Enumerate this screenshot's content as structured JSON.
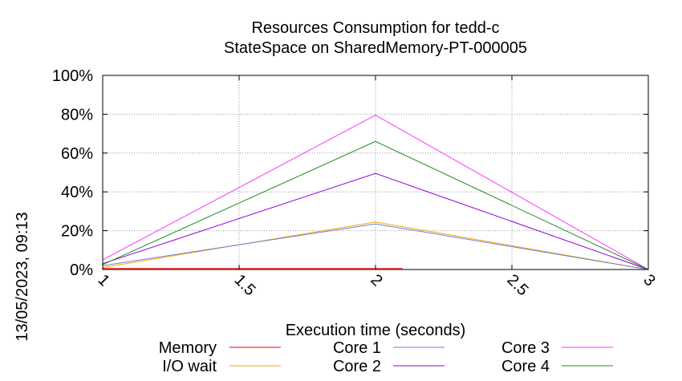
{
  "chart_data": {
    "type": "line",
    "title": "Resources Consumption for tedd-c",
    "subtitle": "StateSpace on SharedMemory-PT-000005",
    "xlabel": "Execution time (seconds)",
    "ylabel": "",
    "side_label": "13/05/2023, 09:13",
    "xlim": [
      1,
      3
    ],
    "ylim": [
      0,
      100
    ],
    "x_ticks": [
      "1",
      "1.5",
      "2",
      "2.5",
      "3"
    ],
    "x_tick_values": [
      1,
      1.5,
      2,
      2.5,
      3
    ],
    "y_ticks": [
      "0%",
      "20%",
      "40%",
      "60%",
      "80%",
      "100%"
    ],
    "y_tick_values": [
      0,
      20,
      40,
      60,
      80,
      100
    ],
    "grid": true,
    "legend_position": "bottom",
    "series": [
      {
        "name": "Memory",
        "color": "#ff0000",
        "x": [
          1,
          2,
          2.1
        ],
        "y": [
          0.5,
          0.5,
          0.5
        ]
      },
      {
        "name": "I/O wait",
        "color": "#ffa500",
        "x": [
          1,
          2,
          3
        ],
        "y": [
          1,
          24.5,
          0
        ]
      },
      {
        "name": "Core 1",
        "color": "#6a7fd6",
        "x": [
          1,
          2,
          3
        ],
        "y": [
          2,
          23.5,
          0
        ]
      },
      {
        "name": "Core 2",
        "color": "#9400d3",
        "x": [
          1,
          2,
          3
        ],
        "y": [
          3,
          49.5,
          0
        ]
      },
      {
        "name": "Core 3",
        "color": "#ff33ff",
        "x": [
          1,
          2,
          3
        ],
        "y": [
          5,
          79.5,
          0
        ]
      },
      {
        "name": "Core 4",
        "color": "#228b22",
        "x": [
          1,
          2,
          3
        ],
        "y": [
          2.5,
          66,
          0
        ]
      }
    ]
  }
}
